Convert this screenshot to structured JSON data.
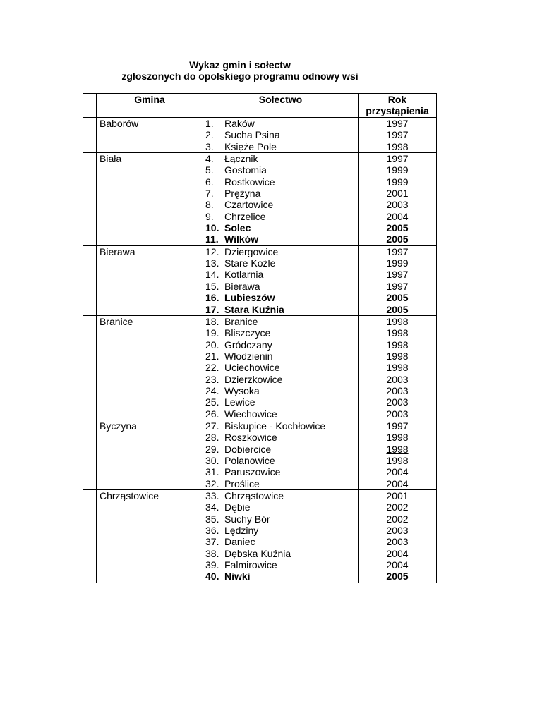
{
  "title": [
    "Wykaz gmin i sołectw",
    "zgłoszonych do opolskiego programu odnowy wsi"
  ],
  "headers": {
    "gmina": "Gmina",
    "solectwo": "Sołectwo",
    "rok": "Rok przystąpienia"
  },
  "groups": [
    {
      "gmina": "Baborów",
      "rows": [
        {
          "n": "1.",
          "name": "Raków",
          "year": "1997"
        },
        {
          "n": "2.",
          "name": "Sucha Psina",
          "year": "1997"
        },
        {
          "n": "3.",
          "name": "Księże Pole",
          "year": "1998"
        }
      ]
    },
    {
      "gmina": "Biała",
      "rows": [
        {
          "n": "4.",
          "name": "Łącznik",
          "year": "1997"
        },
        {
          "n": "5.",
          "name": "Gostomia",
          "year": "1999"
        },
        {
          "n": "6.",
          "name": "Rostkowice",
          "year": "1999"
        },
        {
          "n": "7.",
          "name": "Prężyna",
          "year": "2001"
        },
        {
          "n": "8.",
          "name": "Czartowice",
          "year": "2003"
        },
        {
          "n": "9.",
          "name": "Chrzelice",
          "year": "2004"
        },
        {
          "n": "10.",
          "name": "Solec",
          "year": "2005",
          "bold": true
        },
        {
          "n": "11.",
          "name": "Wilków",
          "year": "2005",
          "bold": true
        }
      ]
    },
    {
      "gmina": "Bierawa",
      "rows": [
        {
          "n": "12.",
          "name": "Dziergowice",
          "year": "1997"
        },
        {
          "n": "13.",
          "name": "Stare Koźle",
          "year": "1999"
        },
        {
          "n": "14.",
          "name": "Kotlarnia",
          "year": "1997"
        },
        {
          "n": "15.",
          "name": "Bierawa",
          "year": "1997"
        },
        {
          "n": "16.",
          "name": "Lubieszów",
          "year": "2005",
          "bold": true
        },
        {
          "n": "17.",
          "name": "Stara Kuźnia",
          "year": "2005",
          "bold": true
        }
      ]
    },
    {
      "gmina": "Branice",
      "rows": [
        {
          "n": "18.",
          "name": "Branice",
          "year": "1998"
        },
        {
          "n": "19.",
          "name": "Bliszczyce",
          "year": "1998"
        },
        {
          "n": "20.",
          "name": "Gródczany",
          "year": "1998"
        },
        {
          "n": "21.",
          "name": "Włodzienin",
          "year": "1998"
        },
        {
          "n": "22.",
          "name": "Uciechowice",
          "year": "1998"
        },
        {
          "n": "23.",
          "name": "Dzierzkowice",
          "year": "2003"
        },
        {
          "n": "24.",
          "name": "Wysoka",
          "year": "2003"
        },
        {
          "n": "25.",
          "name": "Lewice",
          "year": "2003"
        },
        {
          "n": "26.",
          "name": "Wiechowice",
          "year": "2003"
        }
      ]
    },
    {
      "gmina": "Byczyna",
      "rows": [
        {
          "n": "27.",
          "name": "Biskupice - Kochłowice",
          "year": "1997"
        },
        {
          "n": "28.",
          "name": "Roszkowice",
          "year": "1998"
        },
        {
          "n": "29.",
          "name": "Dobiercice",
          "year": "1998",
          "underline": true
        },
        {
          "n": "30.",
          "name": "Polanowice",
          "year": "1998"
        },
        {
          "n": "31.",
          "name": "Paruszowice",
          "year": "2004"
        },
        {
          "n": "32.",
          "name": "Proślice",
          "year": "2004"
        }
      ]
    },
    {
      "gmina": "Chrząstowice",
      "rows": [
        {
          "n": "33.",
          "name": "Chrząstowice",
          "year": "2001"
        },
        {
          "n": "34.",
          "name": "Dębie",
          "year": "2002"
        },
        {
          "n": "35.",
          "name": "Suchy Bór",
          "year": "2002"
        },
        {
          "n": "36.",
          "name": "Lędziny",
          "year": "2003"
        },
        {
          "n": "37.",
          "name": "Daniec",
          "year": "2003"
        },
        {
          "n": "38.",
          "name": "Dębska Kuźnia",
          "year": "2004"
        },
        {
          "n": "39.",
          "name": "Falmirowice",
          "year": "2004"
        },
        {
          "n": "40.",
          "name": "Niwki",
          "year": "2005",
          "bold": true
        }
      ]
    }
  ]
}
